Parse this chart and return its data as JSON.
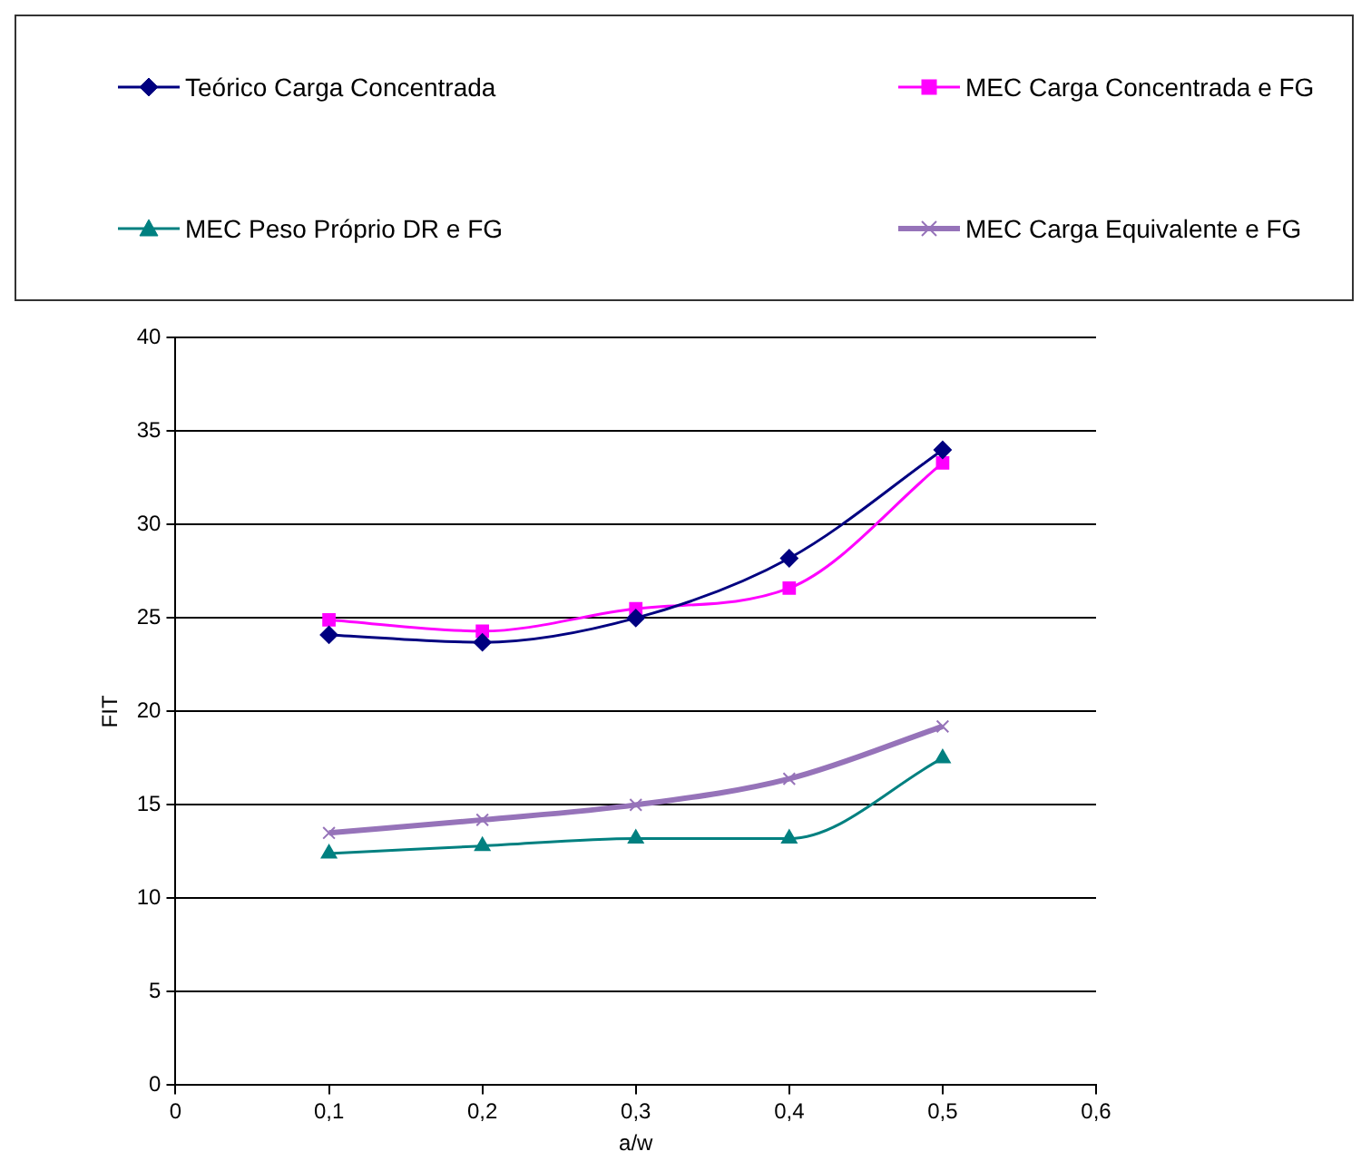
{
  "chart_data": {
    "type": "line",
    "xlabel": "a/w",
    "ylabel": "FIT",
    "x": [
      0.1,
      0.2,
      0.3,
      0.4,
      0.5
    ],
    "series": [
      {
        "name": "Teórico Carga Concentrada",
        "color": "#000080",
        "marker": "diamond",
        "values": [
          24.1,
          23.7,
          25.0,
          28.2,
          34.0
        ]
      },
      {
        "name": "MEC Carga Concentrada e FG",
        "color": "#ff00ff",
        "marker": "square",
        "values": [
          24.9,
          24.3,
          25.5,
          26.6,
          33.3
        ]
      },
      {
        "name": "MEC Peso Próprio DR e FG",
        "color": "#008080",
        "marker": "triangle",
        "values": [
          12.4,
          12.8,
          13.2,
          13.2,
          17.5
        ]
      },
      {
        "name": "MEC Carga Equivalente e FG",
        "color": "#9673b9",
        "marker": "cross",
        "values": [
          13.5,
          14.2,
          15.0,
          16.4,
          19.2
        ]
      }
    ],
    "xlim": [
      0,
      0.6
    ],
    "xticks": [
      0,
      {
        "value": 0.1,
        "label": "0,1"
      },
      {
        "value": 0.2,
        "label": "0,2"
      },
      {
        "value": 0.3,
        "label": "0,3"
      },
      {
        "value": 0.4,
        "label": "0,4"
      },
      {
        "value": 0.5,
        "label": "0,5"
      },
      {
        "value": 0.6,
        "label": "0,6"
      }
    ],
    "ylim": [
      0,
      40
    ],
    "yticks": [
      0,
      5,
      10,
      15,
      20,
      25,
      30,
      35,
      40
    ],
    "grid": "y",
    "legend": "top"
  }
}
